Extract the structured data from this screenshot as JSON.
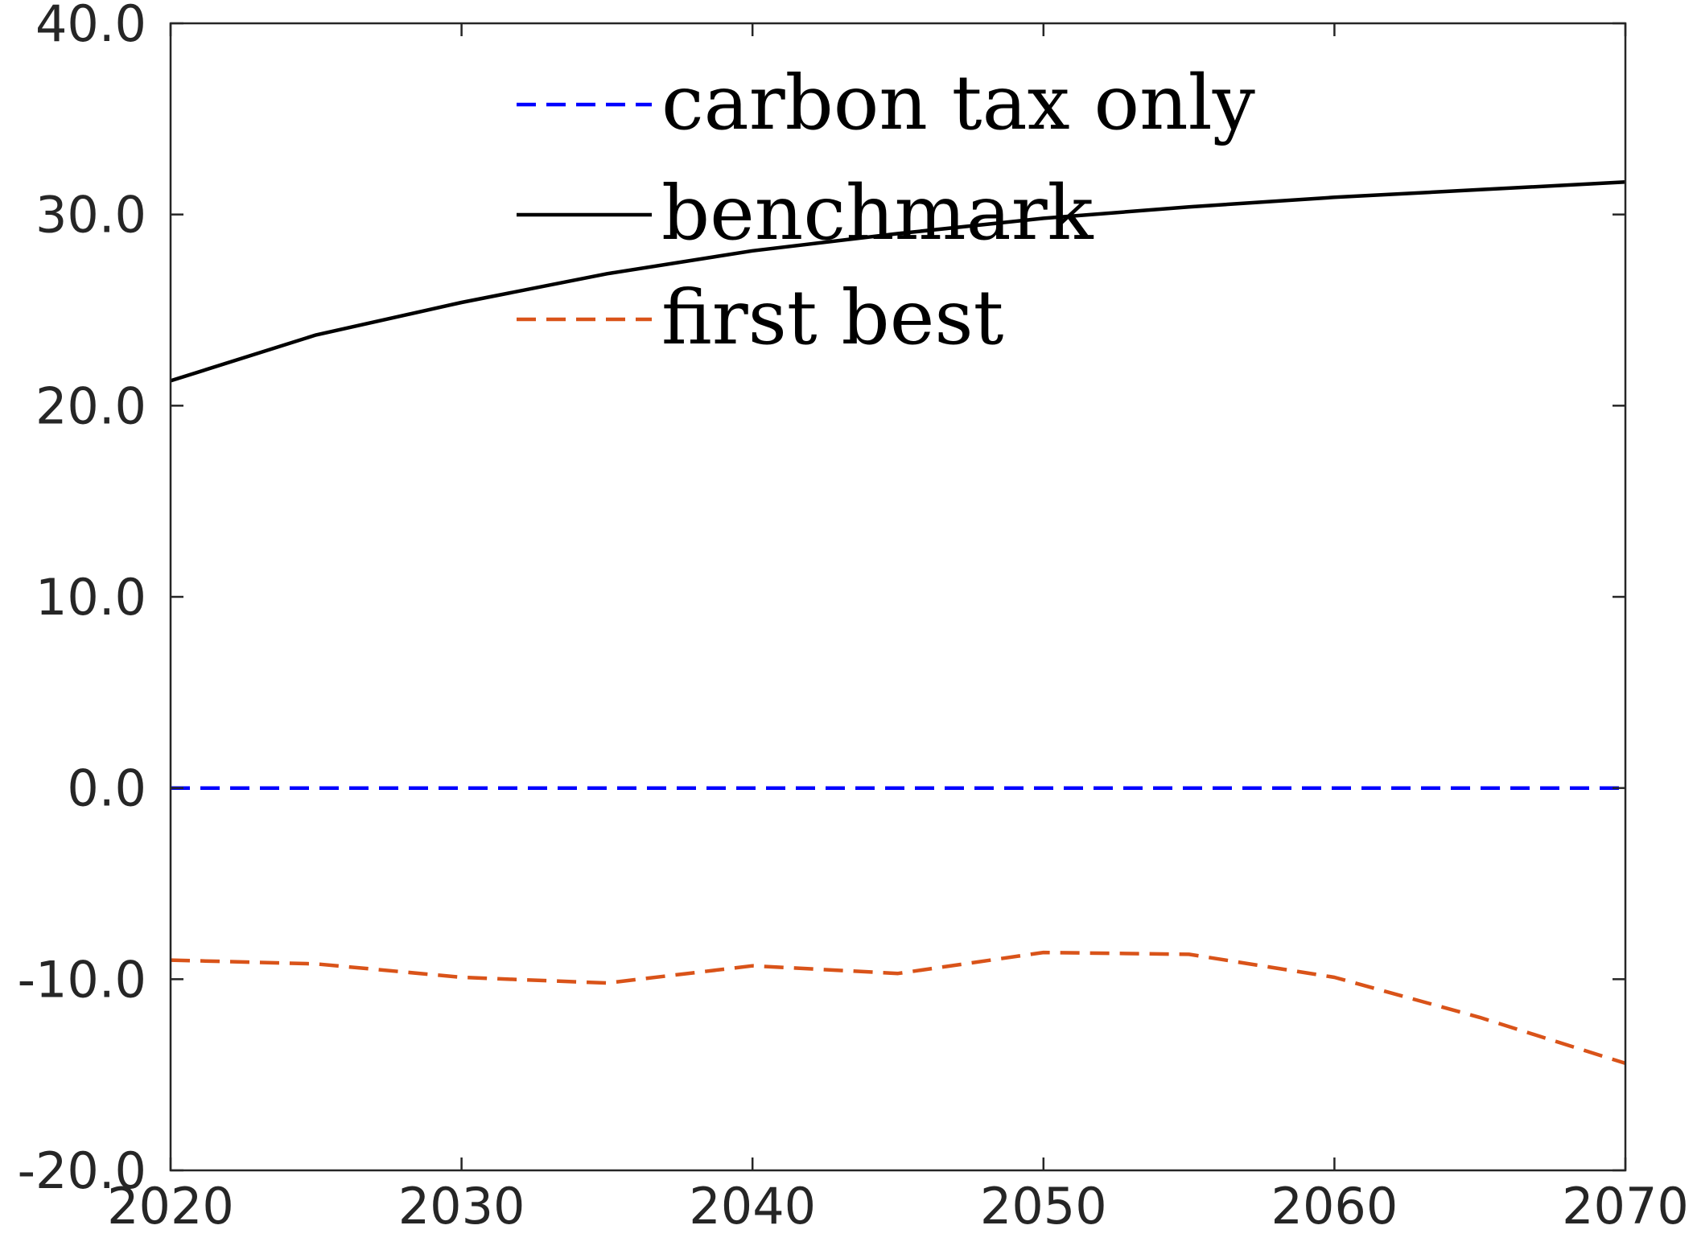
{
  "chart_data": {
    "type": "line",
    "title": "",
    "xlabel": "",
    "ylabel": "",
    "xlim": [
      2020,
      2070
    ],
    "ylim": [
      -20,
      40
    ],
    "xticks": [
      2020,
      2030,
      2040,
      2050,
      2060,
      2070
    ],
    "xtick_labels": [
      "2020",
      "2030",
      "2040",
      "2050",
      "2060",
      "2070"
    ],
    "yticks": [
      -20,
      -10,
      0,
      10,
      20,
      30,
      40
    ],
    "ytick_labels": [
      "-20.0",
      "-10.0",
      "0.0",
      "10.0",
      "20.0",
      "30.0",
      "40.0"
    ],
    "grid": false,
    "legend_position": "top-center",
    "series": [
      {
        "name": "carbon tax only",
        "color": "#0000ff",
        "dash": "dashed",
        "x": [
          2020,
          2025,
          2030,
          2035,
          2040,
          2045,
          2050,
          2055,
          2060,
          2065,
          2070
        ],
        "y": [
          0,
          0,
          0,
          0,
          0,
          0,
          0,
          0,
          0,
          0,
          0
        ]
      },
      {
        "name": "benchmark",
        "color": "#000000",
        "dash": "solid",
        "x": [
          2020,
          2025,
          2030,
          2035,
          2040,
          2045,
          2050,
          2055,
          2060,
          2065,
          2070
        ],
        "y": [
          21.3,
          23.7,
          25.4,
          26.9,
          28.1,
          29.0,
          29.8,
          30.4,
          30.9,
          31.3,
          31.7
        ]
      },
      {
        "name": "first best",
        "color": "#d95319",
        "dash": "dashed",
        "x": [
          2020,
          2025,
          2030,
          2035,
          2040,
          2045,
          2050,
          2055,
          2060,
          2065,
          2070
        ],
        "y": [
          -9.0,
          -9.2,
          -9.9,
          -10.2,
          -9.3,
          -9.7,
          -8.6,
          -8.7,
          -9.9,
          -12.0,
          -14.4
        ]
      }
    ]
  }
}
